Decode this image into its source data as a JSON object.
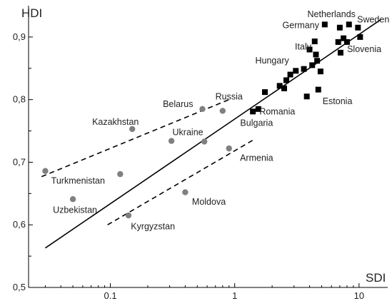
{
  "chart_data": {
    "type": "scatter",
    "xlabel": "SDI",
    "ylabel": "HDI",
    "x_scale": "log",
    "xlim": [
      0.022,
      17
    ],
    "ylim": [
      0.5,
      0.95
    ],
    "x_ticks": [
      {
        "value": 0.1,
        "label": "0.1"
      },
      {
        "value": 1,
        "label": "1"
      },
      {
        "value": 10,
        "label": "10"
      }
    ],
    "y_ticks": [
      {
        "value": 0.5,
        "label": "0,5"
      },
      {
        "value": 0.6,
        "label": "0,6"
      },
      {
        "value": 0.7,
        "label": "0,7"
      },
      {
        "value": 0.8,
        "label": "0,8"
      },
      {
        "value": 0.9,
        "label": "0,9"
      }
    ],
    "grid": false,
    "series": [
      {
        "marker": "circle",
        "color": "#808080",
        "points": [
          {
            "x": 0.03,
            "y": 0.686
          },
          {
            "x": 0.05,
            "y": 0.641
          },
          {
            "x": 0.12,
            "y": 0.681
          },
          {
            "x": 0.15,
            "y": 0.753
          },
          {
            "x": 0.14,
            "y": 0.615
          },
          {
            "x": 0.31,
            "y": 0.734
          },
          {
            "x": 0.4,
            "y": 0.652
          },
          {
            "x": 0.55,
            "y": 0.785
          },
          {
            "x": 0.57,
            "y": 0.733
          },
          {
            "x": 0.8,
            "y": 0.782
          },
          {
            "x": 0.9,
            "y": 0.722
          }
        ]
      },
      {
        "marker": "square",
        "color": "#000000",
        "points": [
          {
            "x": 1.4,
            "y": 0.781
          },
          {
            "x": 1.55,
            "y": 0.785
          },
          {
            "x": 1.75,
            "y": 0.812
          },
          {
            "x": 2.3,
            "y": 0.822
          },
          {
            "x": 2.5,
            "y": 0.818
          },
          {
            "x": 2.6,
            "y": 0.831
          },
          {
            "x": 2.8,
            "y": 0.84
          },
          {
            "x": 3.1,
            "y": 0.846
          },
          {
            "x": 3.6,
            "y": 0.849
          },
          {
            "x": 3.8,
            "y": 0.805
          },
          {
            "x": 4.0,
            "y": 0.88
          },
          {
            "x": 4.2,
            "y": 0.855
          },
          {
            "x": 4.4,
            "y": 0.893
          },
          {
            "x": 4.5,
            "y": 0.872
          },
          {
            "x": 4.6,
            "y": 0.862
          },
          {
            "x": 4.7,
            "y": 0.816
          },
          {
            "x": 4.9,
            "y": 0.845
          },
          {
            "x": 5.3,
            "y": 0.92
          },
          {
            "x": 6.8,
            "y": 0.892
          },
          {
            "x": 7.0,
            "y": 0.915
          },
          {
            "x": 7.1,
            "y": 0.875
          },
          {
            "x": 7.5,
            "y": 0.898
          },
          {
            "x": 8.0,
            "y": 0.892
          },
          {
            "x": 8.3,
            "y": 0.92
          },
          {
            "x": 9.8,
            "y": 0.915
          },
          {
            "x": 10.2,
            "y": 0.9
          }
        ]
      }
    ],
    "lines": [
      {
        "style": "solid",
        "x": [
          0.03,
          15
        ],
        "y": [
          0.563,
          0.928
        ]
      },
      {
        "style": "dashed",
        "x": [
          0.028,
          0.9
        ],
        "y": [
          0.677,
          0.8
        ]
      },
      {
        "style": "dashed",
        "x": [
          0.095,
          1.45
        ],
        "y": [
          0.6,
          0.737
        ]
      }
    ],
    "annotations": [
      {
        "text": "Netherlands",
        "x": 6.0,
        "y": 0.932
      },
      {
        "text": "Sweden",
        "x": 13.0,
        "y": 0.923
      },
      {
        "text": "Germany",
        "x": 3.4,
        "y": 0.914
      },
      {
        "text": "Italy",
        "x": 3.55,
        "y": 0.88
      },
      {
        "text": "Slovenia",
        "x": 11.0,
        "y": 0.876
      },
      {
        "text": "Hungary",
        "x": 2.0,
        "y": 0.858
      },
      {
        "text": "Estonia",
        "x": 6.7,
        "y": 0.793
      },
      {
        "text": "Romania",
        "x": 2.2,
        "y": 0.776
      },
      {
        "text": "Bulgaria",
        "x": 1.5,
        "y": 0.758
      },
      {
        "text": "Belarus",
        "x": 0.35,
        "y": 0.788
      },
      {
        "text": "Russia",
        "x": 0.9,
        "y": 0.8
      },
      {
        "text": "Kazakhstan",
        "x": 0.11,
        "y": 0.76
      },
      {
        "text": "Ukraine",
        "x": 0.42,
        "y": 0.743
      },
      {
        "text": "Armenia",
        "x": 1.5,
        "y": 0.702
      },
      {
        "text": "Turkmenistan",
        "x": 0.055,
        "y": 0.666
      },
      {
        "text": "Uzbekistan",
        "x": 0.052,
        "y": 0.619
      },
      {
        "text": "Moldova",
        "x": 0.62,
        "y": 0.632
      },
      {
        "text": "Kyrgyzstan",
        "x": 0.22,
        "y": 0.593
      }
    ]
  }
}
